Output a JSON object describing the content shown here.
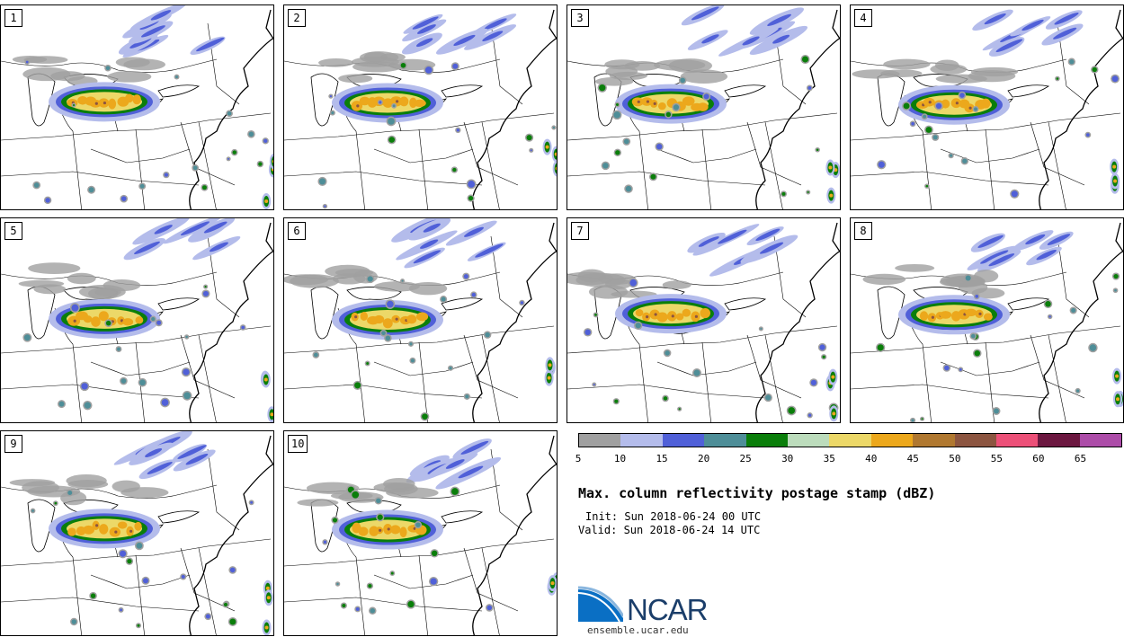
{
  "panels": [
    {
      "label": "1"
    },
    {
      "label": "2"
    },
    {
      "label": "3"
    },
    {
      "label": "4"
    },
    {
      "label": "5"
    },
    {
      "label": "6"
    },
    {
      "label": "7"
    },
    {
      "label": "8"
    },
    {
      "label": "9"
    },
    {
      "label": "10"
    }
  ],
  "colorbar": {
    "ticks": [
      "5",
      "10",
      "15",
      "20",
      "25",
      "30",
      "35",
      "40",
      "45",
      "50",
      "55",
      "60",
      "65"
    ],
    "colors": [
      "#a0a0a0",
      "#b4bceb",
      "#5060d8",
      "#4e8e98",
      "#0a7e0a",
      "#bcdcbc",
      "#ecd868",
      "#eca81c",
      "#b07830",
      "#8c5540",
      "#ec5078",
      "#6c1840",
      "#ac4ca8"
    ]
  },
  "title": "Max. column reflectivity postage stamp (dBZ)",
  "init": "Init: Sun 2018-06-24 00 UTC",
  "valid": "Valid: Sun 2018-06-24 14 UTC",
  "logo": {
    "name": "NCAR"
  },
  "site": "ensemble.ucar.edu"
}
